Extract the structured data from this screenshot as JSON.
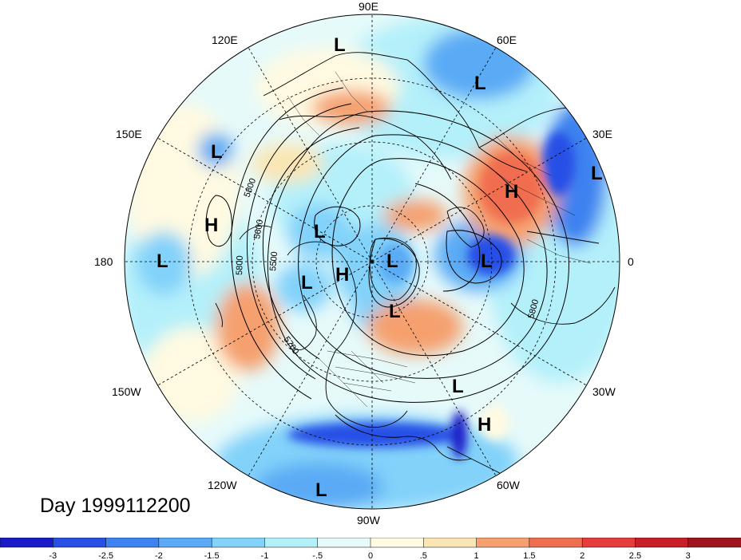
{
  "title": "Day 1999112200",
  "longitude_labels": [
    "90E",
    "60E",
    "30E",
    "0",
    "30W",
    "60W",
    "90W",
    "120W",
    "150W",
    "180",
    "150E",
    "120E"
  ],
  "contour_labels": [
    "5800",
    "5600",
    "5500",
    "5800",
    "5700",
    "5800"
  ],
  "pressure_centers": [
    {
      "type": "L",
      "region": "north-siberia"
    },
    {
      "type": "L",
      "region": "kara-sea"
    },
    {
      "type": "L",
      "region": "caspian"
    },
    {
      "type": "L",
      "region": "kamchatka"
    },
    {
      "type": "H",
      "region": "north-pacific"
    },
    {
      "type": "L",
      "region": "pacific-180"
    },
    {
      "type": "L",
      "region": "east-siberian-sea"
    },
    {
      "type": "L",
      "region": "alaska"
    },
    {
      "type": "H",
      "region": "arctic"
    },
    {
      "type": "L",
      "region": "barents"
    },
    {
      "type": "L",
      "region": "scandinavia"
    },
    {
      "type": "H",
      "region": "russia"
    },
    {
      "type": "L",
      "region": "greenland-sea"
    },
    {
      "type": "L",
      "region": "north-atlantic"
    },
    {
      "type": "H",
      "region": "central-atlantic"
    },
    {
      "type": "L",
      "region": "gulf-of-mexico"
    }
  ],
  "colorbar": {
    "ticks": [
      "-3",
      "-2.5",
      "-2",
      "-1.5",
      "-1",
      "-.5",
      "0",
      ".5",
      "1",
      "1.5",
      "2",
      "2.5",
      "3"
    ],
    "colors": [
      "#1a1ac8",
      "#2850e6",
      "#3c82f0",
      "#5aaaf5",
      "#82d2fa",
      "#b4f0fa",
      "#e6fafa",
      "#fffae1",
      "#fae6b4",
      "#f5a06e",
      "#f06e50",
      "#e63c3c",
      "#c81e28",
      "#a0141e"
    ]
  },
  "colors": {
    "coast": "#000000",
    "grid": "#000000"
  }
}
